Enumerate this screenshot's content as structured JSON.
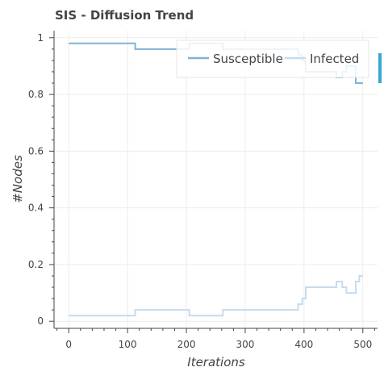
{
  "chart_data": {
    "type": "line",
    "title": "SIS - Diffusion Trend",
    "xlabel": "Iterations",
    "ylabel": "#Nodes",
    "xlim": [
      -25,
      525
    ],
    "ylim": [
      -0.025,
      1.025
    ],
    "x_ticks": [
      0,
      100,
      200,
      300,
      400,
      500
    ],
    "y_ticks": [
      0,
      0.2,
      0.4,
      0.6,
      0.8,
      1
    ],
    "x_tick_labels": [
      "0",
      "100",
      "200",
      "300",
      "400",
      "500"
    ],
    "y_tick_labels": [
      "0",
      "0.2",
      "0.4",
      "0.6",
      "0.8",
      "1"
    ],
    "grid": true,
    "legend_placement": "top-right",
    "series": [
      {
        "name": "Susceptible",
        "color": "#7fb3d5",
        "x": [
          0,
          113,
          113,
          205,
          205,
          262,
          262,
          390,
          390,
          397,
          397,
          403,
          403,
          410,
          410,
          455,
          455,
          465,
          465,
          472,
          472,
          488,
          488,
          494,
          494,
          500
        ],
        "y": [
          0.98,
          0.98,
          0.96,
          0.96,
          0.98,
          0.98,
          0.96,
          0.96,
          0.94,
          0.94,
          0.92,
          0.92,
          0.88,
          0.88,
          0.88,
          0.88,
          0.86,
          0.86,
          0.88,
          0.88,
          0.9,
          0.9,
          0.84,
          0.84,
          0.84,
          0.84
        ]
      },
      {
        "name": "Infected",
        "color": "#c6dbef",
        "x": [
          0,
          113,
          113,
          205,
          205,
          262,
          262,
          390,
          390,
          397,
          397,
          403,
          403,
          410,
          410,
          455,
          455,
          465,
          465,
          472,
          472,
          488,
          488,
          494,
          494,
          500
        ],
        "y": [
          0.02,
          0.02,
          0.04,
          0.04,
          0.02,
          0.02,
          0.04,
          0.04,
          0.06,
          0.06,
          0.08,
          0.08,
          0.12,
          0.12,
          0.12,
          0.12,
          0.14,
          0.14,
          0.12,
          0.12,
          0.1,
          0.1,
          0.14,
          0.14,
          0.16,
          0.16
        ]
      }
    ],
    "colors": {
      "frame": "#444444",
      "grid": "#ececec",
      "legend_border": "#e5e5e5",
      "edge_marker": "#39a7d6"
    }
  }
}
